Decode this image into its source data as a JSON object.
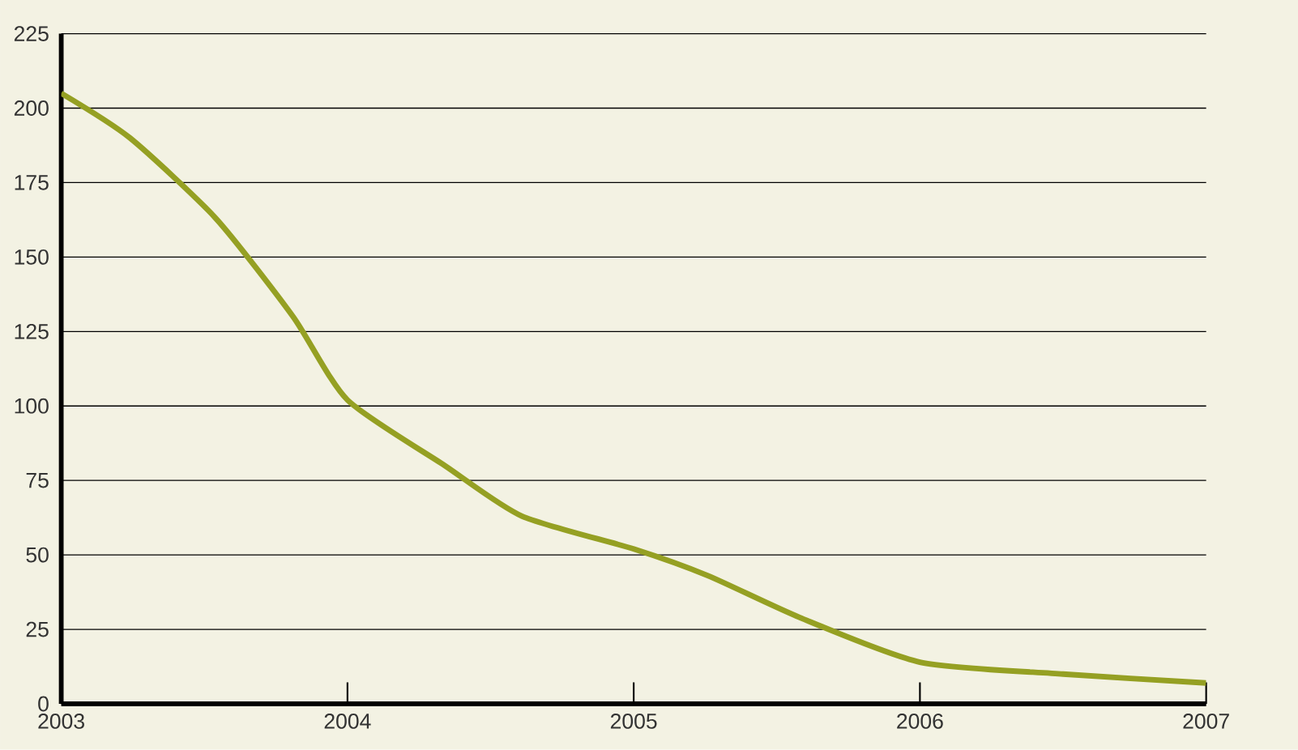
{
  "chart_data": {
    "type": "line",
    "x": [
      2003,
      2003.24,
      2003.54,
      2003.81,
      2004,
      2004.34,
      2004.61,
      2005,
      2005.26,
      2005.58,
      2006,
      2006.5,
      2007
    ],
    "series": [
      {
        "color": "#95a023",
        "values": [
          205,
          190,
          163,
          130,
          102,
          80,
          63,
          52,
          43,
          29,
          14,
          10,
          7
        ]
      }
    ],
    "xlim": [
      2003,
      2007
    ],
    "xticks": [
      2003,
      2004,
      2005,
      2006,
      2007
    ],
    "ylim": [
      0,
      225
    ],
    "yticks": [
      0,
      25,
      50,
      75,
      100,
      125,
      150,
      175,
      200,
      225
    ],
    "grid": "y",
    "marker": "none",
    "line_style": "solid"
  }
}
